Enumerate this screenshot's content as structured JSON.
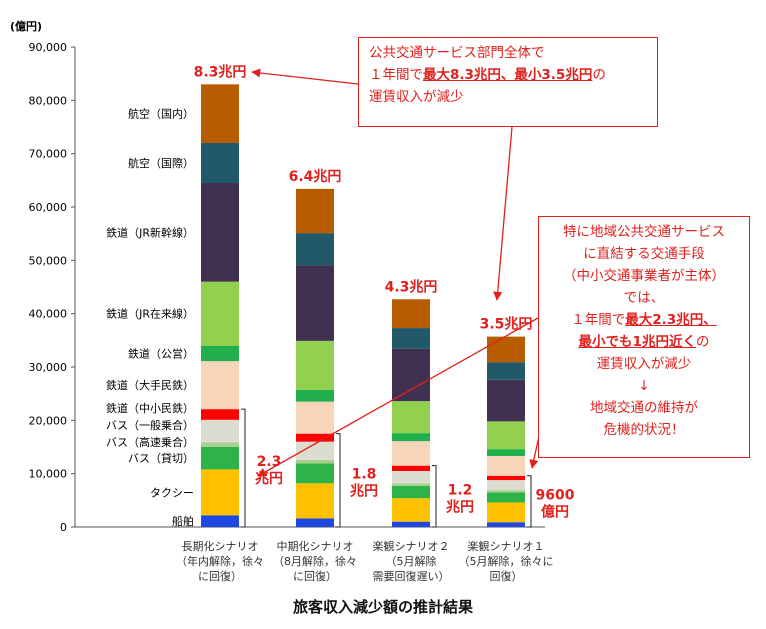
{
  "chart_data": {
    "type": "bar",
    "stacked": true,
    "unit_label": "(億円)",
    "ylim": [
      0,
      90000
    ],
    "yticks": [
      0,
      10000,
      20000,
      30000,
      40000,
      50000,
      60000,
      70000,
      80000,
      90000
    ],
    "ytick_labels": [
      "0",
      "10,000",
      "20,000",
      "30,000",
      "40,000",
      "50,000",
      "60,000",
      "70,000",
      "80,000",
      "90,000"
    ],
    "grid": false,
    "categories": [
      [
        "長期化シナリオ",
        "（年内解除，徐々",
        "に回復）"
      ],
      [
        "中期化シナリオ",
        "（8月解除，徐々",
        "に回復）"
      ],
      [
        "楽観シナリオ２",
        "（5月解除",
        "需要回復遅い）"
      ],
      [
        "楽観シナリオ１",
        "（5月解除，徐々に",
        "回復）"
      ]
    ],
    "totals_labels": [
      "8.3兆円",
      "6.4兆円",
      "4.3兆円",
      "3.5兆円"
    ],
    "local_labels": [
      [
        "2.3",
        "兆円"
      ],
      [
        "1.8",
        "兆円"
      ],
      [
        "1.2",
        "兆円"
      ],
      [
        "9600",
        "億円"
      ]
    ],
    "series": [
      {
        "name": "船舶",
        "color": "#1f48e0",
        "values": [
          2200,
          1600,
          1000,
          900
        ]
      },
      {
        "name": "タクシー",
        "color": "#ffc000",
        "values": [
          8600,
          6600,
          4400,
          3700
        ]
      },
      {
        "name": "バス（貸切）",
        "color": "#2db34a",
        "values": [
          4200,
          3700,
          2300,
          1900
        ]
      },
      {
        "name": "バス（高速乗合）",
        "color": "#a8d08d",
        "values": [
          900,
          700,
          500,
          400
        ]
      },
      {
        "name": "バス（一般乗合）",
        "color": "#dcdcd0",
        "values": [
          4200,
          3400,
          2300,
          1900
        ]
      },
      {
        "name": "鉄道（中小民鉄）",
        "color": "#ff0000",
        "values": [
          2000,
          1500,
          1000,
          800
        ]
      },
      {
        "name": "鉄道（大手民鉄）",
        "color": "#f8d5b8",
        "values": [
          9000,
          6000,
          4600,
          3700
        ]
      },
      {
        "name": "鉄道（公営）",
        "color": "#22b04c",
        "values": [
          2900,
          2200,
          1500,
          1300
        ]
      },
      {
        "name": "鉄道（JR在来線）",
        "color": "#92d050",
        "values": [
          12000,
          9200,
          6000,
          5200
        ]
      },
      {
        "name": "鉄道（JR新幹線）",
        "color": "#403151",
        "values": [
          18500,
          14200,
          9800,
          7800
        ]
      },
      {
        "name": "航空（国際）",
        "color": "#215968",
        "values": [
          7500,
          6000,
          3900,
          3300
        ]
      },
      {
        "name": "航空（国内）",
        "color": "#b85c00",
        "values": [
          11000,
          8300,
          5400,
          4800
        ]
      }
    ],
    "caption": "旅客収入減少額の推計結果",
    "annotations": [
      [
        "公共交通サービス部門全体で",
        "１年間で",
        "最大8.3兆円、最小3.5兆円",
        "の",
        "運賃収入が減少"
      ],
      [
        "特に地域公共交通サービス",
        "に直結する交通手段",
        "（中小交通事業者が主体）",
        "では、",
        "１年間で",
        "最大2.3兆円、",
        "最小でも1兆円近く",
        "の",
        "運賃収入が減少",
        "↓",
        "地域交通の維持が",
        "危機的状況！"
      ]
    ]
  }
}
